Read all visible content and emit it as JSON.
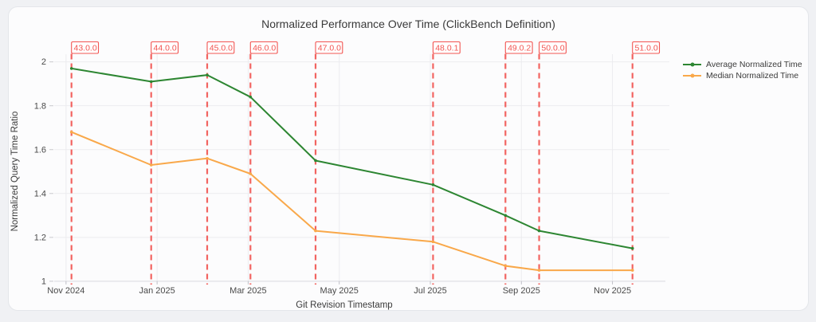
{
  "chart_data": {
    "type": "line",
    "title": "Normalized Performance Over Time (ClickBench Definition)",
    "xlabel": "Git Revision Timestamp",
    "ylabel": "Normalized Query Time Ratio",
    "x_unit_note": "months since Nov 2024, read from axis position",
    "xlim": [
      -0.26,
      13.25
    ],
    "ylim": [
      0.985,
      2.035
    ],
    "grid": true,
    "legend_position": "right",
    "x_ticks": [
      {
        "pos": 0,
        "label": "Nov 2024"
      },
      {
        "pos": 2,
        "label": "Jan 2025"
      },
      {
        "pos": 4,
        "label": "Mar 2025"
      },
      {
        "pos": 6,
        "label": "May 2025"
      },
      {
        "pos": 8,
        "label": "Jul 2025"
      },
      {
        "pos": 10,
        "label": "Sep 2025"
      },
      {
        "pos": 12,
        "label": "Nov 2025"
      }
    ],
    "y_ticks": [
      {
        "value": 1,
        "label": "1"
      },
      {
        "value": 1.2,
        "label": "1.2"
      },
      {
        "value": 1.4,
        "label": "1.4"
      },
      {
        "value": 1.6,
        "label": "1.6"
      },
      {
        "value": 1.8,
        "label": "1.8"
      },
      {
        "value": 2,
        "label": "2"
      }
    ],
    "annotation_color": "#f25451",
    "versions": [
      {
        "label": "43.0.0",
        "x": 0.12
      },
      {
        "label": "44.0.0",
        "x": 1.87
      },
      {
        "label": "45.0.0",
        "x": 3.1
      },
      {
        "label": "46.0.0",
        "x": 4.05
      },
      {
        "label": "47.0.0",
        "x": 5.48
      },
      {
        "label": "48.0.1",
        "x": 8.06
      },
      {
        "label": "49.0.2",
        "x": 9.65
      },
      {
        "label": "50.0.0",
        "x": 10.39
      },
      {
        "label": "51.0.0",
        "x": 12.44
      }
    ],
    "x": [
      0.12,
      1.87,
      3.1,
      4.05,
      5.48,
      8.06,
      9.65,
      10.39,
      12.44
    ],
    "series": [
      {
        "name": "Average Normalized Time",
        "color": "#2d8632",
        "values": [
          1.97,
          1.91,
          1.94,
          1.84,
          1.55,
          1.44,
          1.3,
          1.23,
          1.15
        ]
      },
      {
        "name": "Median Normalized Time",
        "color": "#f9a84a",
        "values": [
          1.68,
          1.53,
          1.56,
          1.49,
          1.23,
          1.18,
          1.07,
          1.05,
          1.05
        ]
      }
    ]
  }
}
